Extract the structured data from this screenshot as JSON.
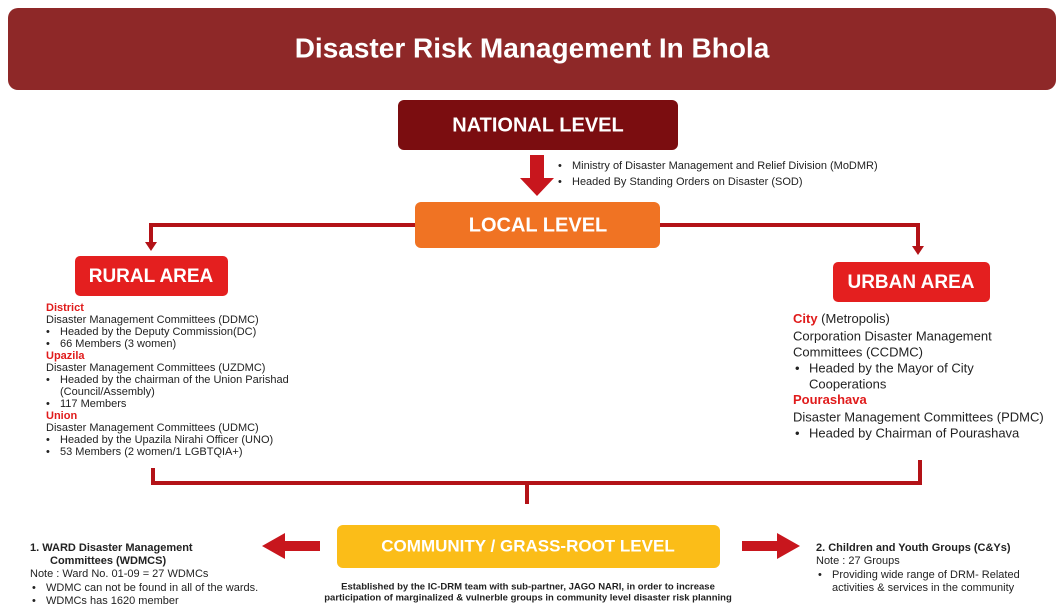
{
  "header": {
    "title": "Disaster Risk Management In Bhola"
  },
  "national": {
    "label": "NATIONAL LEVEL",
    "notes": [
      "Ministry of Disaster Management and Relief Division (MoDMR)",
      "Headed By Standing Orders on Disaster (SOD)"
    ]
  },
  "local": {
    "label": "LOCAL LEVEL"
  },
  "rural": {
    "label": "RURAL AREA",
    "sections": [
      {
        "heading": "District",
        "committee": "Disaster Management Committees (DDMC)",
        "bullets": [
          [
            "Headed by the Deputy Commission(DC)"
          ],
          [
            "66 Members (3 women)"
          ]
        ]
      },
      {
        "heading": "Upazila",
        "committee": "Disaster Management Committees (UZDMC)",
        "bullets": [
          [
            "Headed by the chairman of the Union Parishad",
            "(Council/Assembly)"
          ],
          [
            "117 Members"
          ]
        ]
      },
      {
        "heading": "Union",
        "committee": "Disaster Management Committees (UDMC)",
        "bullets": [
          [
            "Headed by the Upazila Nirahi Officer (UNO)"
          ],
          [
            "53 Members (2 women/1 LGBTQIA+)"
          ]
        ]
      }
    ]
  },
  "urban": {
    "label": "URBAN AREA",
    "sections": [
      {
        "heading": "City",
        "heading_note": " (Metropolis)",
        "committee": [
          "Corporation Disaster Management",
          "Committees (CCDMC)"
        ],
        "bullets": [
          [
            "Headed by the Mayor of City",
            "Cooperations"
          ]
        ]
      },
      {
        "heading": "Pourashava",
        "committee": [
          "Disaster Management Committees (PDMC)"
        ],
        "bullets": [
          [
            "Headed by Chairman of Pourashava"
          ]
        ]
      }
    ]
  },
  "community": {
    "label": "COMMUNITY / GRASS-ROOT LEVEL",
    "description": [
      "Established by the IC-DRM team with sub-partner, JAGO NARI, in order to increase",
      "participation of marginalized & vulnerble groups in community level disaster risk planning"
    ],
    "left": {
      "title": [
        "1.  WARD Disaster Management",
        "Committees (WDMCS)"
      ],
      "note": "Note : Ward No. 01-09 = 27 WDMCs",
      "bullets": [
        [
          "WDMC can not be found in all of the wards."
        ],
        [
          "WDMCs has 1620 member"
        ]
      ]
    },
    "right": {
      "title": [
        "2. Children and Youth Groups (C&Ys)"
      ],
      "note": "Note : 27 Groups",
      "bullets": [
        [
          "Providing wide range of DRM- Related",
          "activities & services in the community"
        ]
      ]
    }
  }
}
